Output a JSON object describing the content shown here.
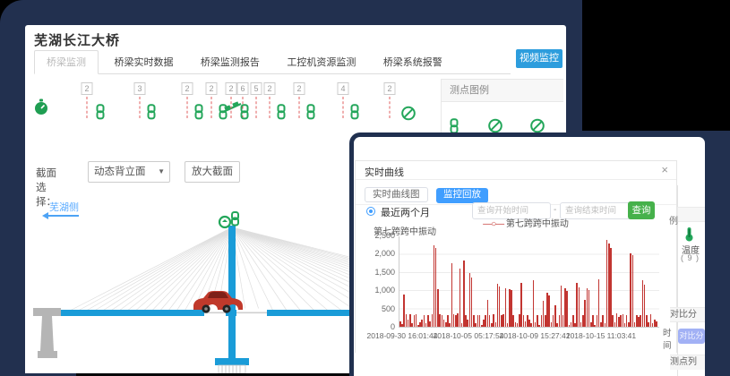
{
  "main": {
    "title": "芜湖长江大桥",
    "tabs": [
      {
        "label": "桥梁监测",
        "active": true
      },
      {
        "label": "桥梁实时数据",
        "active": false
      },
      {
        "label": "桥梁监测报告",
        "active": false
      },
      {
        "label": "工控机资源监测",
        "active": false
      },
      {
        "label": "桥梁系统报警",
        "active": false
      }
    ],
    "video_button": "视频监控",
    "legend_panel": {
      "title": "测点图例"
    },
    "section_select": {
      "label": "截面选择：",
      "value": "动态背立面",
      "caret": "▼",
      "zoom_button": "放大截面"
    },
    "bridge": {
      "side_label": "芜湖侧"
    },
    "sensors": [
      {
        "type": "stopwatch-icon"
      },
      {
        "type": "badge",
        "value": "2"
      },
      {
        "type": "chain-icon"
      },
      {
        "type": "badge",
        "value": "3"
      },
      {
        "type": "chain-icon"
      },
      {
        "type": "badge",
        "value": "2"
      },
      {
        "type": "chain-icon"
      },
      {
        "type": "badge",
        "value": "2"
      },
      {
        "type": "chain-icon"
      },
      {
        "type": "tilt-icon"
      },
      {
        "type": "badge",
        "value": "2"
      },
      {
        "type": "badge",
        "value": "6"
      },
      {
        "type": "chain-icon"
      },
      {
        "type": "badge",
        "value": "5"
      },
      {
        "type": "badge",
        "value": "2"
      },
      {
        "type": "chain-icon"
      },
      {
        "type": "badge",
        "value": "2"
      },
      {
        "type": "chain-icon"
      },
      {
        "type": "badge",
        "value": "4"
      },
      {
        "type": "chain-icon"
      },
      {
        "type": "badge",
        "value": "2"
      },
      {
        "type": "ban-icon"
      }
    ]
  },
  "dialog": {
    "title": "实时曲线",
    "close": "×",
    "tabs": [
      {
        "label": "实时曲线图",
        "active": false
      },
      {
        "label": "监控回放",
        "active": true
      }
    ],
    "radio_label": "最近两个月",
    "start_placeholder": "查询开始时间",
    "separator": "-",
    "end_placeholder": "查询结束时间",
    "search_button": "查询",
    "legend_mark": "—○—",
    "legend_label": "第七跨跨中振动"
  },
  "backdrop_panel": {
    "legend_fragment": "例",
    "temperature_label": "温度",
    "temperature_count": "( 9 )",
    "compare_header": "对比分析",
    "compare_button": "对比分析",
    "list_header": "测点列表"
  },
  "chart_data": {
    "type": "bar",
    "title": "第七跨跨中振动",
    "series_name": "第七跨跨中振动",
    "xlabel": "时间",
    "ylim": [
      0,
      2500
    ],
    "yticks": [
      0,
      500,
      1000,
      1500,
      2000,
      2500
    ],
    "ytick_labels": [
      "0",
      "500",
      "1,000",
      "1,500",
      "2,000",
      "2,500"
    ],
    "x_tick_labels": [
      "2018-09-30 16:01:44",
      "2018-10-05 05:17:54",
      "2018-10-09 15:27:41",
      "2018-10-15 11:03:41"
    ],
    "bar_color": "#c23531",
    "grid": true,
    "legend_position": "top",
    "values": [
      150,
      80,
      880,
      350,
      200,
      340,
      90,
      330,
      340,
      60,
      120,
      200,
      330,
      90,
      330,
      150,
      340,
      2230,
      2160,
      1030,
      340,
      330,
      200,
      120,
      330,
      90,
      1740,
      340,
      330,
      360,
      1600,
      90,
      1810,
      330,
      200,
      1460,
      1340,
      330,
      90,
      330,
      320,
      60,
      200,
      330,
      740,
      330,
      90,
      340,
      120,
      1170,
      1100,
      330,
      340,
      1050,
      90,
      1030,
      1000,
      330,
      120,
      90,
      340,
      1210,
      330,
      150,
      330,
      200,
      90,
      1270,
      120,
      330,
      60,
      330,
      700,
      330,
      940,
      870,
      120,
      330,
      600,
      90,
      330,
      1140,
      330,
      1060,
      980,
      60,
      120,
      330,
      90,
      1190,
      1090,
      120,
      330,
      740,
      1050,
      1000,
      120,
      330,
      60,
      330,
      1290,
      120,
      330,
      90,
      2380,
      2290,
      2150,
      330,
      120,
      360,
      280,
      330,
      340,
      90,
      330,
      120,
      2000,
      1970,
      120,
      330,
      260,
      330,
      1280,
      1150,
      330,
      120,
      340,
      90,
      200,
      150
    ]
  }
}
